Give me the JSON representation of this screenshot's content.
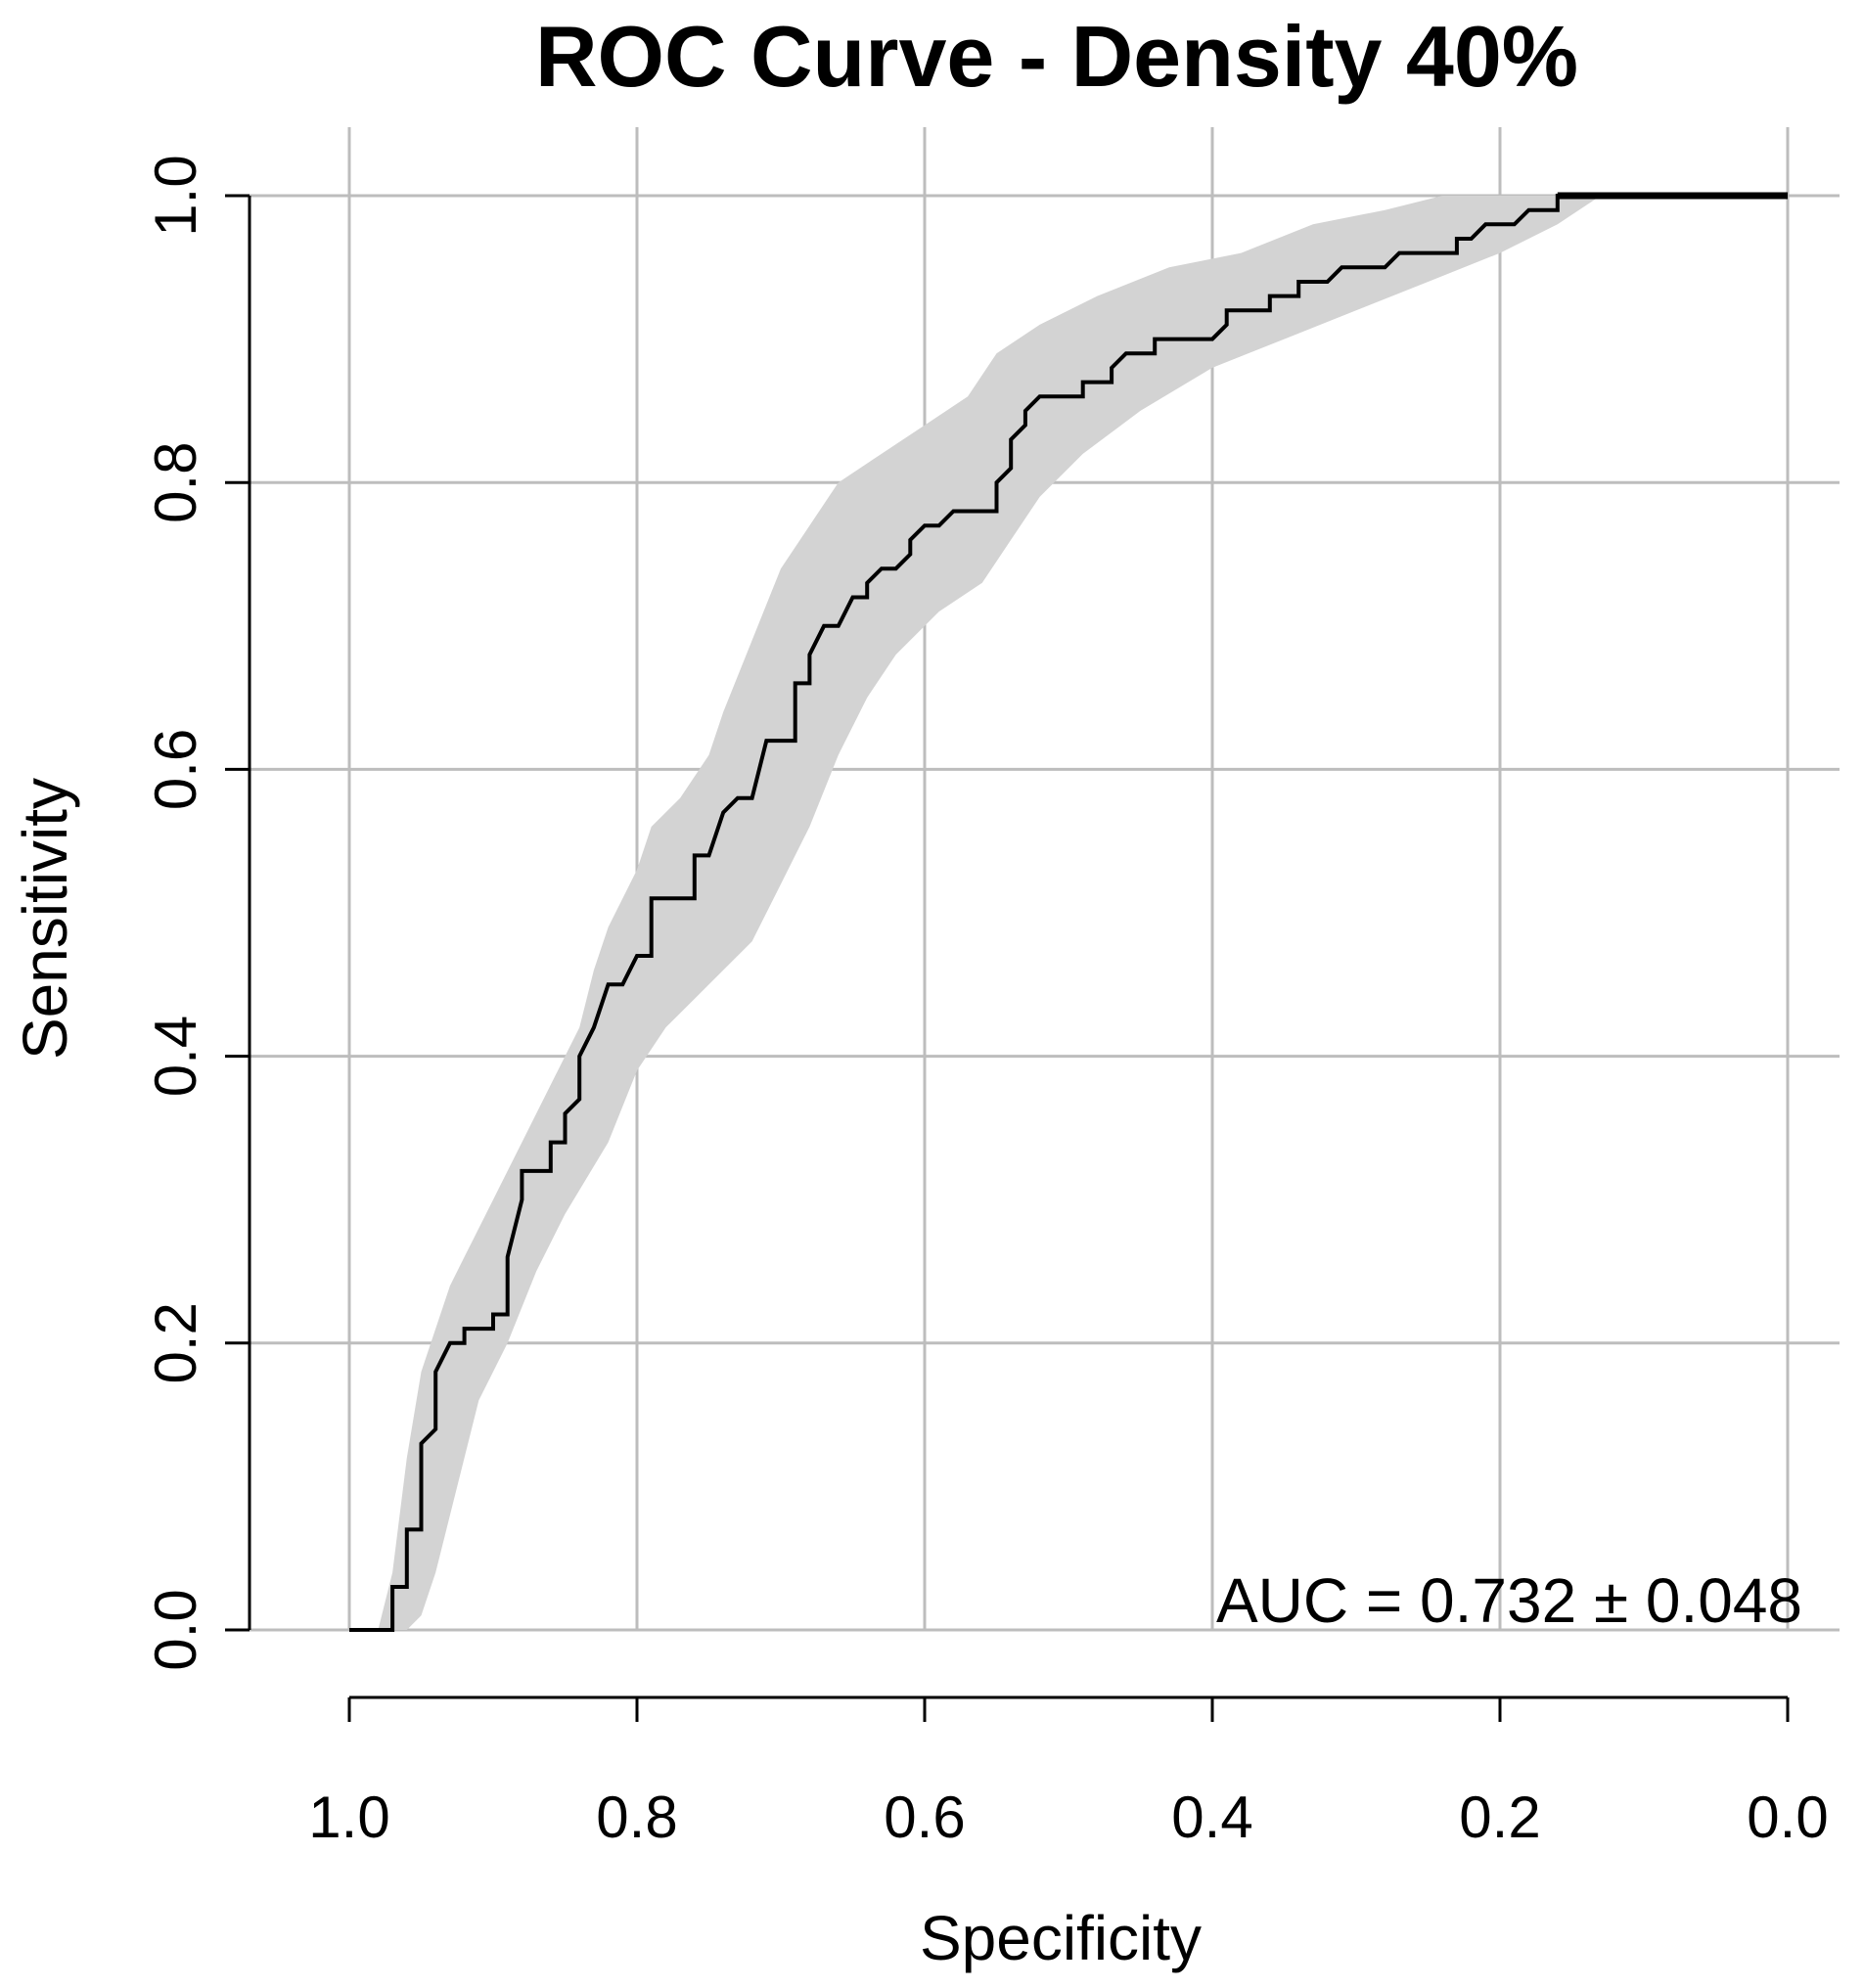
{
  "chart_data": {
    "type": "line",
    "title": "ROC Curve - Density 40%",
    "xlabel": "Specificity",
    "ylabel": "Sensitivity",
    "xlim": [
      1.0,
      0.0
    ],
    "ylim": [
      0.0,
      1.0
    ],
    "x_reversed": true,
    "grid": true,
    "x_ticks": [
      "1.0",
      "0.8",
      "0.6",
      "0.4",
      "0.2",
      "0.0"
    ],
    "y_ticks": [
      "0.0",
      "0.2",
      "0.4",
      "0.6",
      "0.8",
      "1.0"
    ],
    "annotation": "AUC = 0.732 ± 0.048",
    "colors": {
      "curve": "#000000",
      "ci_band": "#d3d3d3",
      "grid": "#bdbdbd"
    },
    "series": [
      {
        "values": [
          [
            1.0,
            0.0
          ],
          [
            0.97,
            0.0
          ],
          [
            0.97,
            0.03
          ],
          [
            0.96,
            0.03
          ],
          [
            0.96,
            0.07
          ],
          [
            0.95,
            0.07
          ],
          [
            0.95,
            0.13
          ],
          [
            0.94,
            0.14
          ],
          [
            0.94,
            0.18
          ],
          [
            0.93,
            0.2
          ],
          [
            0.92,
            0.2
          ],
          [
            0.92,
            0.21
          ],
          [
            0.9,
            0.21
          ],
          [
            0.9,
            0.22
          ],
          [
            0.89,
            0.22
          ],
          [
            0.89,
            0.26
          ],
          [
            0.88,
            0.3
          ],
          [
            0.88,
            0.32
          ],
          [
            0.86,
            0.32
          ],
          [
            0.86,
            0.34
          ],
          [
            0.85,
            0.34
          ],
          [
            0.85,
            0.36
          ],
          [
            0.84,
            0.37
          ],
          [
            0.84,
            0.4
          ],
          [
            0.83,
            0.42
          ],
          [
            0.82,
            0.45
          ],
          [
            0.81,
            0.45
          ],
          [
            0.8,
            0.47
          ],
          [
            0.79,
            0.47
          ],
          [
            0.79,
            0.51
          ],
          [
            0.76,
            0.51
          ],
          [
            0.76,
            0.54
          ],
          [
            0.75,
            0.54
          ],
          [
            0.74,
            0.57
          ],
          [
            0.73,
            0.58
          ],
          [
            0.72,
            0.58
          ],
          [
            0.71,
            0.62
          ],
          [
            0.69,
            0.62
          ],
          [
            0.69,
            0.66
          ],
          [
            0.68,
            0.66
          ],
          [
            0.68,
            0.68
          ],
          [
            0.67,
            0.7
          ],
          [
            0.66,
            0.7
          ],
          [
            0.65,
            0.72
          ],
          [
            0.64,
            0.72
          ],
          [
            0.64,
            0.73
          ],
          [
            0.63,
            0.74
          ],
          [
            0.62,
            0.74
          ],
          [
            0.61,
            0.75
          ],
          [
            0.61,
            0.76
          ],
          [
            0.6,
            0.77
          ],
          [
            0.59,
            0.77
          ],
          [
            0.58,
            0.78
          ],
          [
            0.55,
            0.78
          ],
          [
            0.55,
            0.8
          ],
          [
            0.54,
            0.81
          ],
          [
            0.54,
            0.83
          ],
          [
            0.53,
            0.84
          ],
          [
            0.53,
            0.85
          ],
          [
            0.52,
            0.86
          ],
          [
            0.49,
            0.86
          ],
          [
            0.49,
            0.87
          ],
          [
            0.47,
            0.87
          ],
          [
            0.47,
            0.88
          ],
          [
            0.46,
            0.89
          ],
          [
            0.44,
            0.89
          ],
          [
            0.44,
            0.9
          ],
          [
            0.4,
            0.9
          ],
          [
            0.39,
            0.91
          ],
          [
            0.39,
            0.92
          ],
          [
            0.36,
            0.92
          ],
          [
            0.36,
            0.93
          ],
          [
            0.34,
            0.93
          ],
          [
            0.34,
            0.94
          ],
          [
            0.32,
            0.94
          ],
          [
            0.31,
            0.95
          ],
          [
            0.28,
            0.95
          ],
          [
            0.27,
            0.96
          ],
          [
            0.23,
            0.96
          ],
          [
            0.23,
            0.97
          ],
          [
            0.22,
            0.97
          ],
          [
            0.21,
            0.98
          ],
          [
            0.19,
            0.98
          ],
          [
            0.18,
            0.99
          ],
          [
            0.16,
            0.99
          ],
          [
            0.16,
            1.0
          ],
          [
            0.0,
            1.0
          ]
        ]
      }
    ],
    "confidence_band": {
      "upper": [
        [
          0.98,
          0.0
        ],
        [
          0.97,
          0.04
        ],
        [
          0.96,
          0.12
        ],
        [
          0.95,
          0.18
        ],
        [
          0.94,
          0.21
        ],
        [
          0.93,
          0.24
        ],
        [
          0.92,
          0.26
        ],
        [
          0.9,
          0.3
        ],
        [
          0.88,
          0.34
        ],
        [
          0.86,
          0.38
        ],
        [
          0.84,
          0.42
        ],
        [
          0.83,
          0.46
        ],
        [
          0.82,
          0.49
        ],
        [
          0.8,
          0.53
        ],
        [
          0.79,
          0.56
        ],
        [
          0.77,
          0.58
        ],
        [
          0.75,
          0.61
        ],
        [
          0.74,
          0.64
        ],
        [
          0.72,
          0.69
        ],
        [
          0.7,
          0.74
        ],
        [
          0.68,
          0.77
        ],
        [
          0.66,
          0.8
        ],
        [
          0.63,
          0.82
        ],
        [
          0.6,
          0.84
        ],
        [
          0.57,
          0.86
        ],
        [
          0.55,
          0.89
        ],
        [
          0.52,
          0.91
        ],
        [
          0.48,
          0.93
        ],
        [
          0.43,
          0.95
        ],
        [
          0.38,
          0.96
        ],
        [
          0.33,
          0.98
        ],
        [
          0.28,
          0.99
        ],
        [
          0.24,
          1.0
        ],
        [
          0.0,
          1.0
        ]
      ],
      "lower": [
        [
          0.0,
          1.0
        ],
        [
          0.13,
          1.0
        ],
        [
          0.16,
          0.98
        ],
        [
          0.2,
          0.96
        ],
        [
          0.25,
          0.94
        ],
        [
          0.3,
          0.92
        ],
        [
          0.35,
          0.9
        ],
        [
          0.4,
          0.88
        ],
        [
          0.45,
          0.85
        ],
        [
          0.49,
          0.82
        ],
        [
          0.52,
          0.79
        ],
        [
          0.54,
          0.76
        ],
        [
          0.56,
          0.73
        ],
        [
          0.59,
          0.71
        ],
        [
          0.62,
          0.68
        ],
        [
          0.64,
          0.65
        ],
        [
          0.66,
          0.61
        ],
        [
          0.68,
          0.56
        ],
        [
          0.7,
          0.52
        ],
        [
          0.72,
          0.48
        ],
        [
          0.75,
          0.45
        ],
        [
          0.78,
          0.42
        ],
        [
          0.8,
          0.39
        ],
        [
          0.82,
          0.34
        ],
        [
          0.85,
          0.29
        ],
        [
          0.87,
          0.25
        ],
        [
          0.89,
          0.2
        ],
        [
          0.91,
          0.16
        ],
        [
          0.92,
          0.12
        ],
        [
          0.93,
          0.08
        ],
        [
          0.94,
          0.04
        ],
        [
          0.95,
          0.01
        ],
        [
          0.96,
          0.0
        ]
      ]
    }
  }
}
